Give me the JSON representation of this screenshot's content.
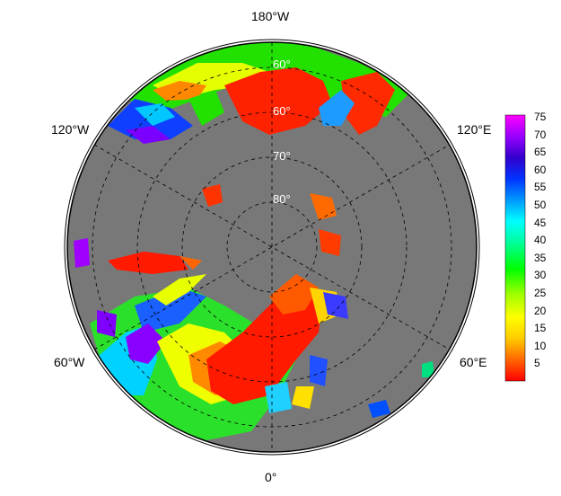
{
  "longitude_labels": {
    "top": "180°W",
    "bottom": "0°",
    "upper_left": "120°W",
    "upper_right": "120°E",
    "lower_left": "60°W",
    "lower_right": "60°E"
  },
  "latitude_labels": [
    "60°",
    "60°",
    "70°",
    "80°"
  ],
  "colorbar": {
    "ticks": [
      "75",
      "70",
      "65",
      "60",
      "55",
      "50",
      "45",
      "40",
      "35",
      "30",
      "25",
      "20",
      "15",
      "10",
      "5"
    ],
    "colors": [
      "#ff0000",
      "#ff6600",
      "#ffcc00",
      "#ffff00",
      "#99ff00",
      "#00ff00",
      "#00ff99",
      "#00ffff",
      "#0099ff",
      "#0033ff",
      "#3300cc",
      "#9900ff",
      "#ff00ff"
    ]
  },
  "colors": {
    "land": "#787878",
    "frame": "#000000"
  }
}
